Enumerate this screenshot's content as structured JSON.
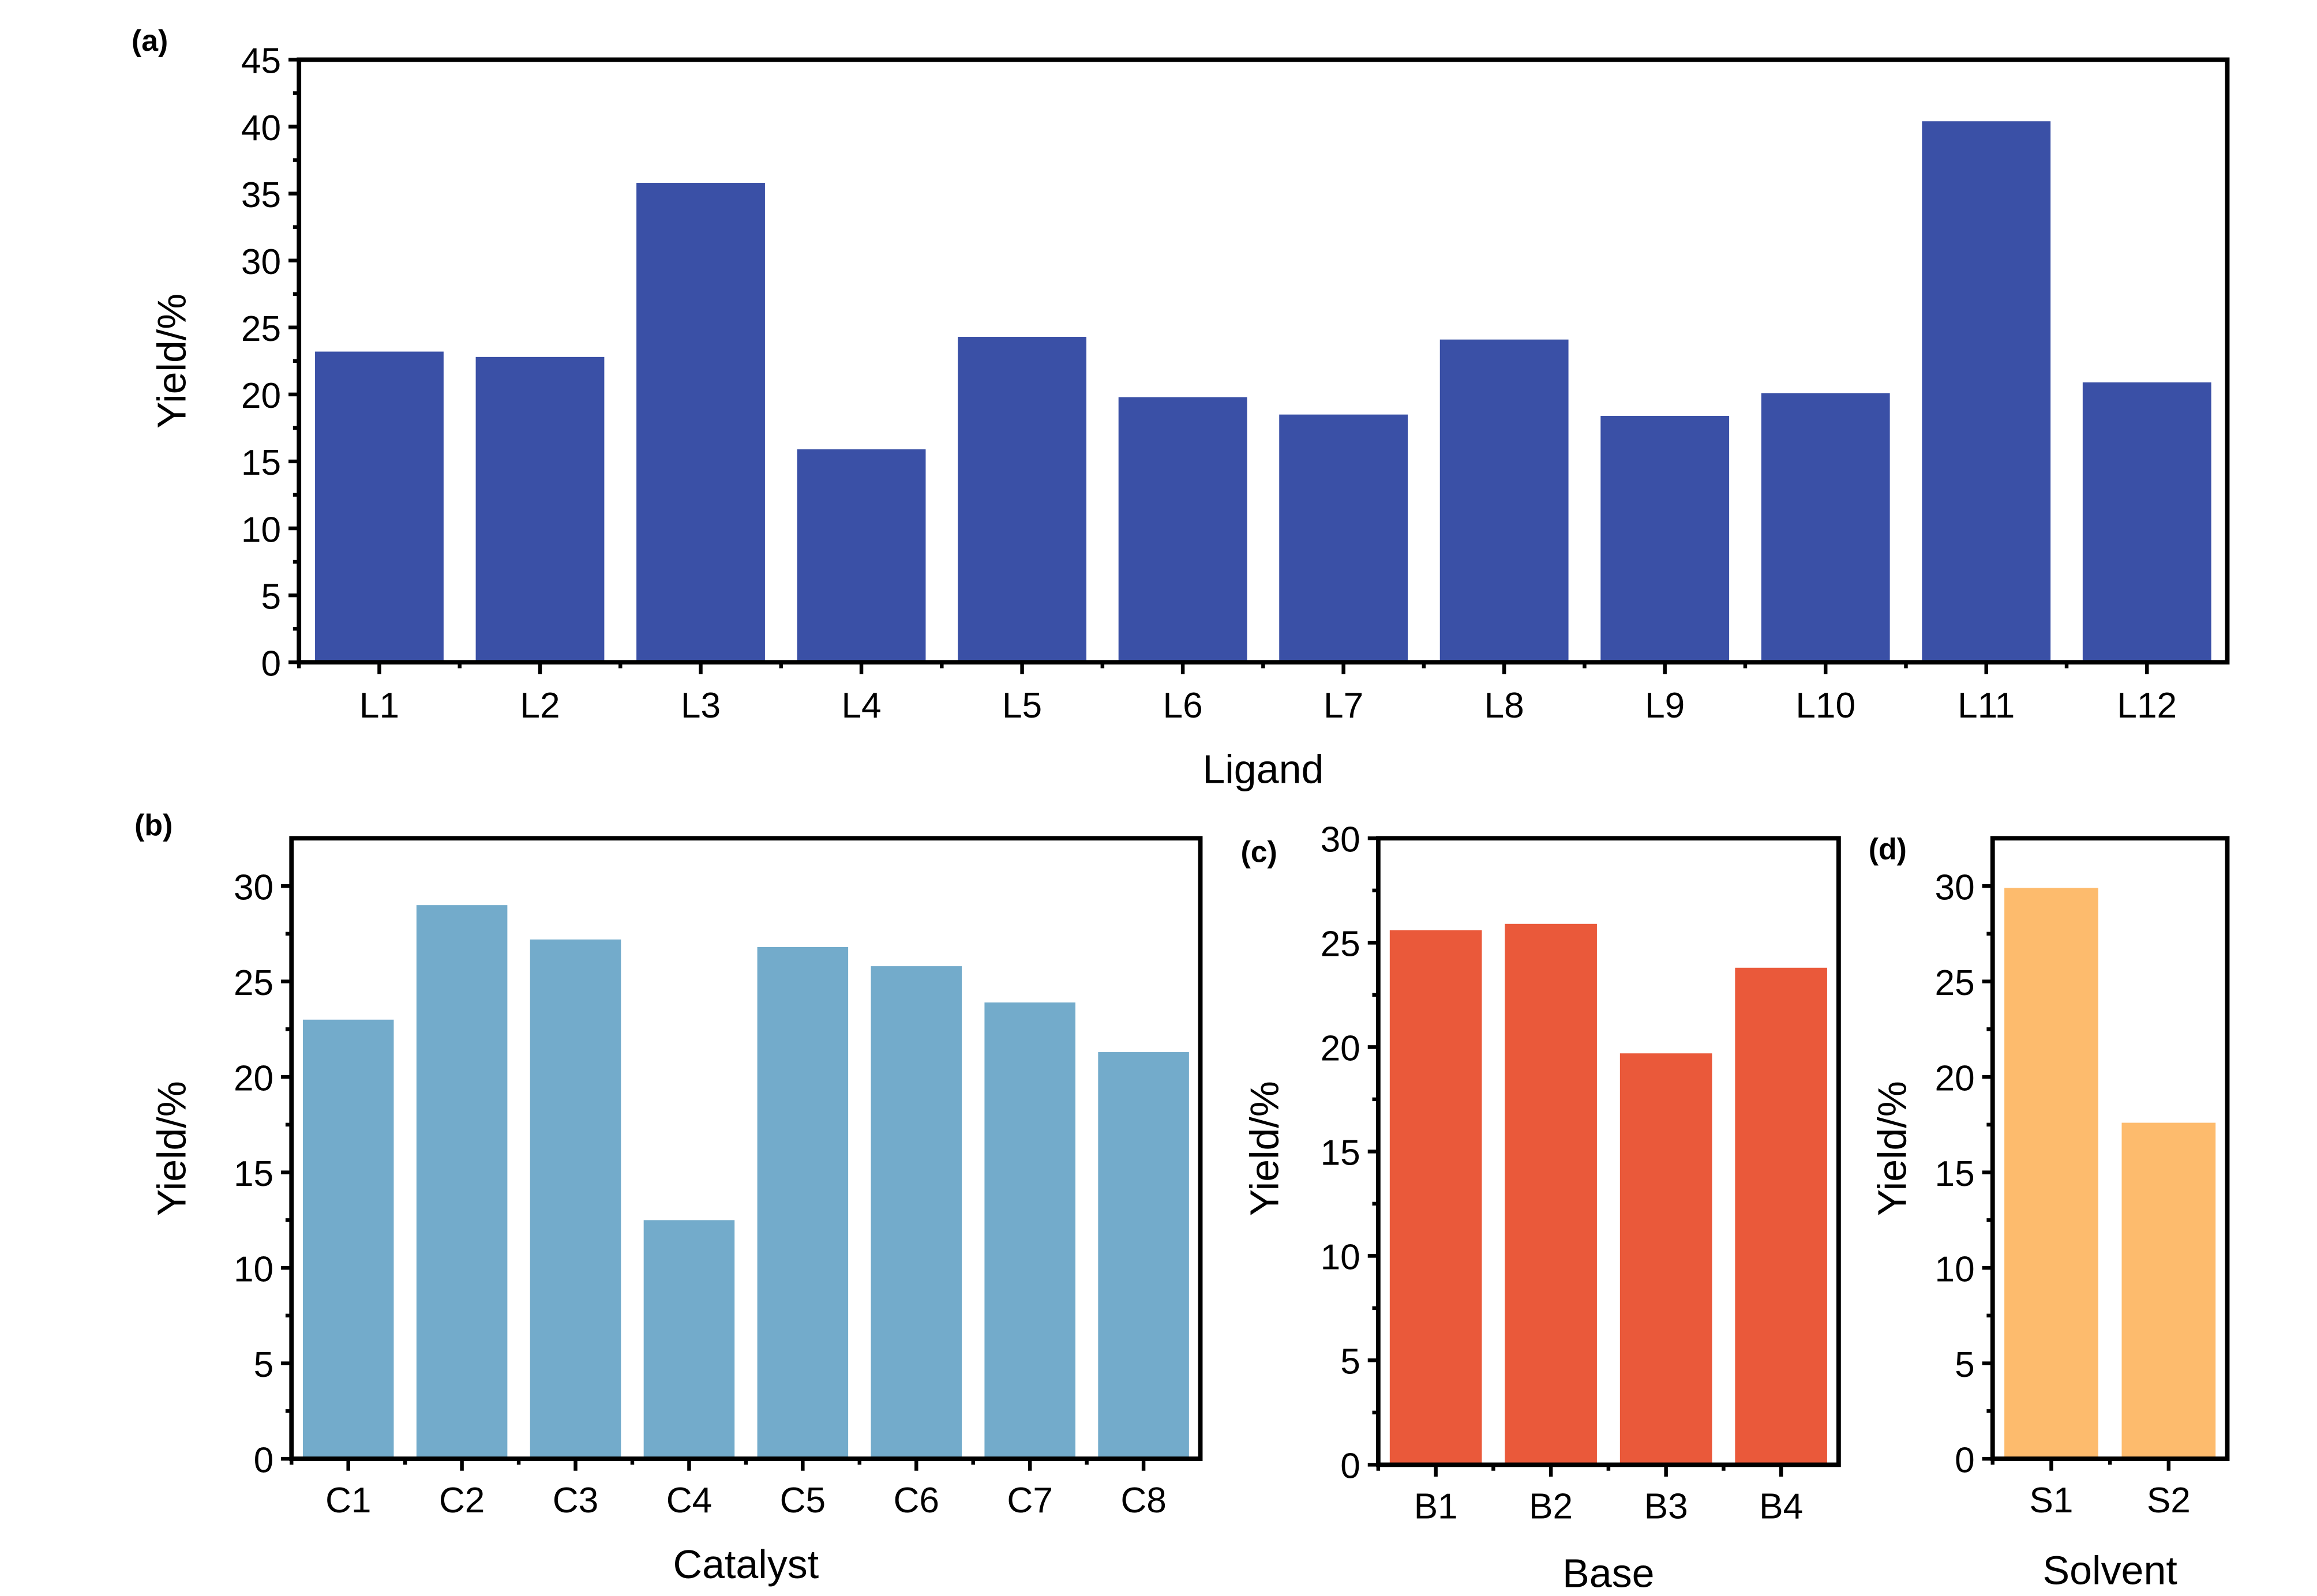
{
  "chart_data": [
    {
      "id": "a",
      "panel_label": "(a)",
      "type": "bar",
      "title": "",
      "xlabel": "Ligand",
      "ylabel": "Yield/%",
      "categories": [
        "L1",
        "L2",
        "L3",
        "L4",
        "L5",
        "L6",
        "L7",
        "L8",
        "L9",
        "L10",
        "L11",
        "L12"
      ],
      "values": [
        23.2,
        22.8,
        35.8,
        15.9,
        24.3,
        19.8,
        18.5,
        24.1,
        18.4,
        20.1,
        40.4,
        20.9
      ],
      "ylim": [
        0,
        45
      ],
      "yticks": [
        0,
        5,
        10,
        15,
        20,
        25,
        30,
        35,
        40,
        45
      ],
      "color": "#3a50a6",
      "grid": false,
      "legend": "none"
    },
    {
      "id": "b",
      "panel_label": "(b)",
      "type": "bar",
      "title": "",
      "xlabel": "Catalyst",
      "ylabel": "Yield/%",
      "categories": [
        "C1",
        "C2",
        "C3",
        "C4",
        "C5",
        "C6",
        "C7",
        "C8"
      ],
      "values": [
        23.0,
        29.0,
        27.2,
        12.5,
        26.8,
        25.8,
        23.9,
        21.3
      ],
      "ylim": [
        0,
        32.5
      ],
      "yticks": [
        0,
        5,
        10,
        15,
        20,
        25,
        30
      ],
      "color": "#73abcb",
      "grid": false,
      "legend": "none"
    },
    {
      "id": "c",
      "panel_label": "(c)",
      "type": "bar",
      "title": "",
      "xlabel": "Base",
      "ylabel": "Yield/%",
      "categories": [
        "B1",
        "B2",
        "B3",
        "B4"
      ],
      "values": [
        25.6,
        25.9,
        19.7,
        23.8
      ],
      "ylim": [
        0,
        30
      ],
      "yticks": [
        0,
        5,
        10,
        15,
        20,
        25,
        30
      ],
      "color": "#ea593a",
      "grid": false,
      "legend": "none"
    },
    {
      "id": "d",
      "panel_label": "(d)",
      "type": "bar",
      "title": "",
      "xlabel": "Solvent",
      "ylabel": "Yield/%",
      "categories": [
        "S1",
        "S2"
      ],
      "values": [
        29.9,
        17.6
      ],
      "ylim": [
        0,
        32.5
      ],
      "yticks": [
        0,
        5,
        10,
        15,
        20,
        25,
        30
      ],
      "color": "#fdbb6d",
      "grid": false,
      "legend": "none"
    }
  ]
}
